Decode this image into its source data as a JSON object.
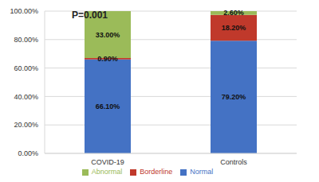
{
  "chart_data": {
    "type": "bar",
    "stacked": true,
    "annotation": "P=0.001",
    "categories": [
      "COVID-19",
      "Controls"
    ],
    "series": [
      {
        "name": "Normal",
        "color": "#4472c4",
        "values": [
          66.1,
          79.2
        ],
        "value_labels": [
          "66.10%",
          "79.20%"
        ]
      },
      {
        "name": "Borderline",
        "color": "#c0392b",
        "values": [
          0.9,
          18.2
        ],
        "value_labels": [
          "0.90%",
          "18.20%"
        ]
      },
      {
        "name": "Abnormal",
        "color": "#9bbb59",
        "values": [
          33.0,
          2.6
        ],
        "value_labels": [
          "33.00%",
          "2.60%"
        ]
      }
    ],
    "ylim": [
      0,
      100
    ],
    "yticks": [
      {
        "value": 0,
        "label": "0.00%"
      },
      {
        "value": 20,
        "label": "20.00%"
      },
      {
        "value": 40,
        "label": "40.00%"
      },
      {
        "value": 60,
        "label": "60.00%"
      },
      {
        "value": 80,
        "label": "80.00%"
      },
      {
        "value": 100,
        "label": "100.00%"
      }
    ],
    "grid": true,
    "data_labels": true,
    "legend": "bottom"
  }
}
